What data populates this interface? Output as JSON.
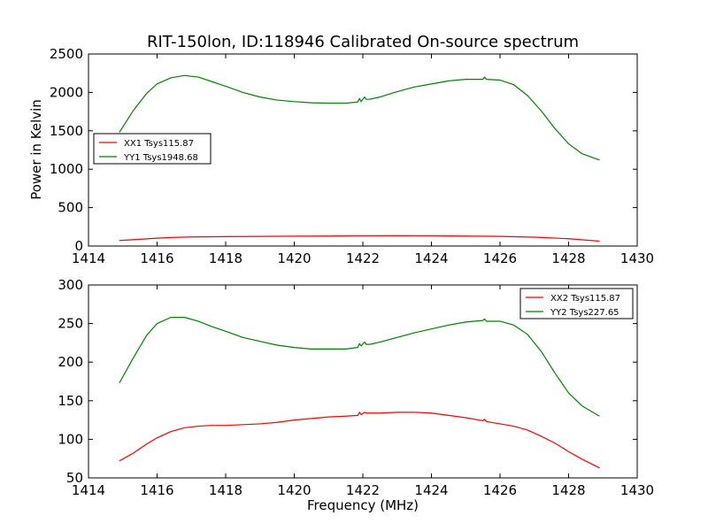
{
  "chart_data": [
    {
      "type": "line",
      "title": "RIT-150lon, ID:118946 Calibrated On-source spectrum",
      "xlabel": "",
      "ylabel": "Power in Kelvin",
      "xlim": [
        1414,
        1430
      ],
      "ylim": [
        0,
        2500
      ],
      "xticks": [
        1414,
        1416,
        1418,
        1420,
        1422,
        1424,
        1426,
        1428,
        1430
      ],
      "yticks": [
        0,
        500,
        1000,
        1500,
        2000,
        2500
      ],
      "legend_position": "center-left",
      "series": [
        {
          "name": "XX1 Tsys115.87",
          "color": "#ff0000",
          "x": [
            1414.9,
            1415.5,
            1416.0,
            1416.5,
            1417.0,
            1418.0,
            1419.0,
            1420.0,
            1421.0,
            1422.0,
            1423.0,
            1424.0,
            1425.0,
            1426.0,
            1427.0,
            1428.0,
            1428.9
          ],
          "y": [
            72,
            88,
            102,
            112,
            118,
            122,
            125,
            128,
            130,
            133,
            134,
            133,
            130,
            125,
            115,
            95,
            63
          ]
        },
        {
          "name": "YY1 Tsys1948.68",
          "color": "#008000",
          "x": [
            1414.9,
            1415.3,
            1415.7,
            1416.0,
            1416.4,
            1416.8,
            1417.2,
            1417.6,
            1418.0,
            1418.5,
            1419.0,
            1419.5,
            1420.0,
            1420.5,
            1421.0,
            1421.5,
            1421.85,
            1421.9,
            1421.95,
            1422.05,
            1422.1,
            1422.2,
            1422.5,
            1423.0,
            1423.5,
            1424.0,
            1424.5,
            1425.0,
            1425.5,
            1425.55,
            1425.6,
            1426.0,
            1426.4,
            1426.8,
            1427.2,
            1427.6,
            1428.0,
            1428.4,
            1428.9
          ],
          "y": [
            1480,
            1760,
            1990,
            2110,
            2190,
            2220,
            2200,
            2140,
            2080,
            2000,
            1940,
            1900,
            1880,
            1865,
            1860,
            1860,
            1875,
            1920,
            1880,
            1940,
            1910,
            1910,
            1940,
            2010,
            2070,
            2110,
            2150,
            2170,
            2170,
            2200,
            2170,
            2160,
            2100,
            1960,
            1760,
            1530,
            1330,
            1200,
            1120
          ]
        }
      ]
    },
    {
      "type": "line",
      "title": "",
      "xlabel": "Frequency (MHz)",
      "ylabel": "",
      "xlim": [
        1414,
        1430
      ],
      "ylim": [
        50,
        300
      ],
      "xticks": [
        1414,
        1416,
        1418,
        1420,
        1422,
        1424,
        1426,
        1428,
        1430
      ],
      "yticks": [
        50,
        100,
        150,
        200,
        250,
        300
      ],
      "legend_position": "top-right",
      "series": [
        {
          "name": "XX2 Tsys115.87",
          "color": "#ff0000",
          "x": [
            1414.9,
            1415.3,
            1415.7,
            1416.0,
            1416.4,
            1416.8,
            1417.2,
            1417.6,
            1418.0,
            1418.5,
            1419.0,
            1419.5,
            1420.0,
            1420.5,
            1421.0,
            1421.5,
            1421.85,
            1421.9,
            1421.95,
            1422.05,
            1422.1,
            1422.2,
            1422.5,
            1423.0,
            1423.5,
            1424.0,
            1424.5,
            1425.0,
            1425.5,
            1425.55,
            1425.6,
            1426.0,
            1426.4,
            1426.8,
            1427.2,
            1427.6,
            1428.0,
            1428.4,
            1428.9
          ],
          "y": [
            72,
            82,
            94,
            102,
            110,
            115,
            117,
            118,
            118,
            119,
            120,
            122,
            125,
            127,
            129,
            130,
            131,
            135,
            132,
            135,
            134,
            134,
            134,
            135,
            135,
            134,
            131,
            128,
            124,
            126,
            123,
            120,
            117,
            112,
            104,
            95,
            84,
            74,
            63
          ]
        },
        {
          "name": "YY2 Tsys227.65",
          "color": "#008000",
          "x": [
            1414.9,
            1415.3,
            1415.7,
            1416.0,
            1416.4,
            1416.8,
            1417.2,
            1417.6,
            1418.0,
            1418.5,
            1419.0,
            1419.5,
            1420.0,
            1420.5,
            1421.0,
            1421.5,
            1421.85,
            1421.9,
            1421.95,
            1422.05,
            1422.1,
            1422.2,
            1422.5,
            1423.0,
            1423.5,
            1424.0,
            1424.5,
            1425.0,
            1425.5,
            1425.55,
            1425.6,
            1426.0,
            1426.4,
            1426.8,
            1427.2,
            1427.6,
            1428.0,
            1428.4,
            1428.9
          ],
          "y": [
            173,
            205,
            235,
            250,
            258,
            258,
            253,
            246,
            240,
            232,
            227,
            222,
            219,
            217,
            217,
            217,
            219,
            224,
            221,
            226,
            223,
            223,
            226,
            232,
            238,
            243,
            248,
            252,
            254,
            256,
            253,
            253,
            248,
            236,
            214,
            186,
            160,
            143,
            130
          ]
        }
      ]
    }
  ]
}
